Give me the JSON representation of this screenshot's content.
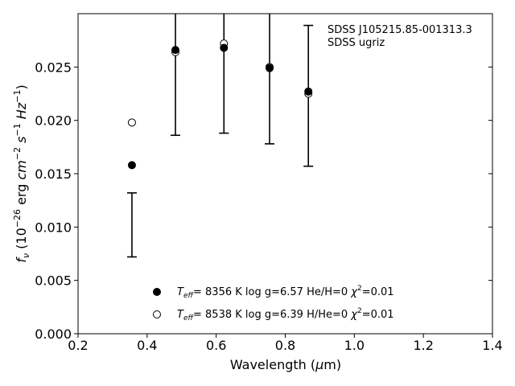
{
  "chart_data": {
    "type": "scatter",
    "xlabel_main": "Wavelength (",
    "xlabel_mu": "μ",
    "xlabel_unit": "m)",
    "ylabel": {
      "f": "f",
      "nu": "ν",
      "open": " (10",
      "exp26": "−26",
      "erg": " erg ",
      "cm": "cm",
      "exp2": "−2",
      "s": " s",
      "exp1a": "−1",
      "hz": " Hz",
      "exp1b": "−1",
      "close": ")"
    },
    "xlim": [
      0.2,
      1.4
    ],
    "ylim": [
      0.0,
      0.03
    ],
    "xticks": [
      0.2,
      0.4,
      0.6,
      0.8,
      1.0,
      1.2,
      1.4
    ],
    "xtick_labels": [
      "0.2",
      "0.4",
      "0.6",
      "0.8",
      "1.0",
      "1.2",
      "1.4"
    ],
    "yticks": [
      0.0,
      0.005,
      0.01,
      0.015,
      0.02,
      0.025
    ],
    "ytick_labels": [
      "0.000",
      "0.005",
      "0.010",
      "0.015",
      "0.020",
      "0.025"
    ],
    "annotation": [
      "SDSS J105215.85-001313.3",
      "SDSS ugriz"
    ],
    "observed": {
      "x": [
        0.356,
        0.482,
        0.6224,
        0.7546,
        0.8669
      ],
      "y": [
        0.0102,
        0.0265,
        0.0279,
        0.0255,
        0.0223
      ],
      "yerr": [
        0.003,
        0.0079,
        0.0091,
        0.0077,
        0.0066
      ]
    },
    "series": [
      {
        "marker": "filled",
        "teff_label": "T",
        "teff_sub": "eff",
        "label_rest": "=  8356 K  log g=6.57  He/H=0  ",
        "chi_label": "χ",
        "chi_sup": "2",
        "chi_rest": "=0.01",
        "x": [
          0.356,
          0.482,
          0.6224,
          0.7546,
          0.8669
        ],
        "y": [
          0.0158,
          0.0266,
          0.0268,
          0.0249,
          0.0227
        ]
      },
      {
        "marker": "open",
        "teff_label": "T",
        "teff_sub": "eff",
        "label_rest": "=  8538 K  log g=6.39  H/He=0  ",
        "chi_label": "χ",
        "chi_sup": "2",
        "chi_rest": "=0.01",
        "x": [
          0.356,
          0.482,
          0.6224,
          0.7546,
          0.8669
        ],
        "y": [
          0.0198,
          0.0264,
          0.0272,
          0.025,
          0.0225
        ]
      }
    ],
    "legend_position": "lower-center"
  }
}
